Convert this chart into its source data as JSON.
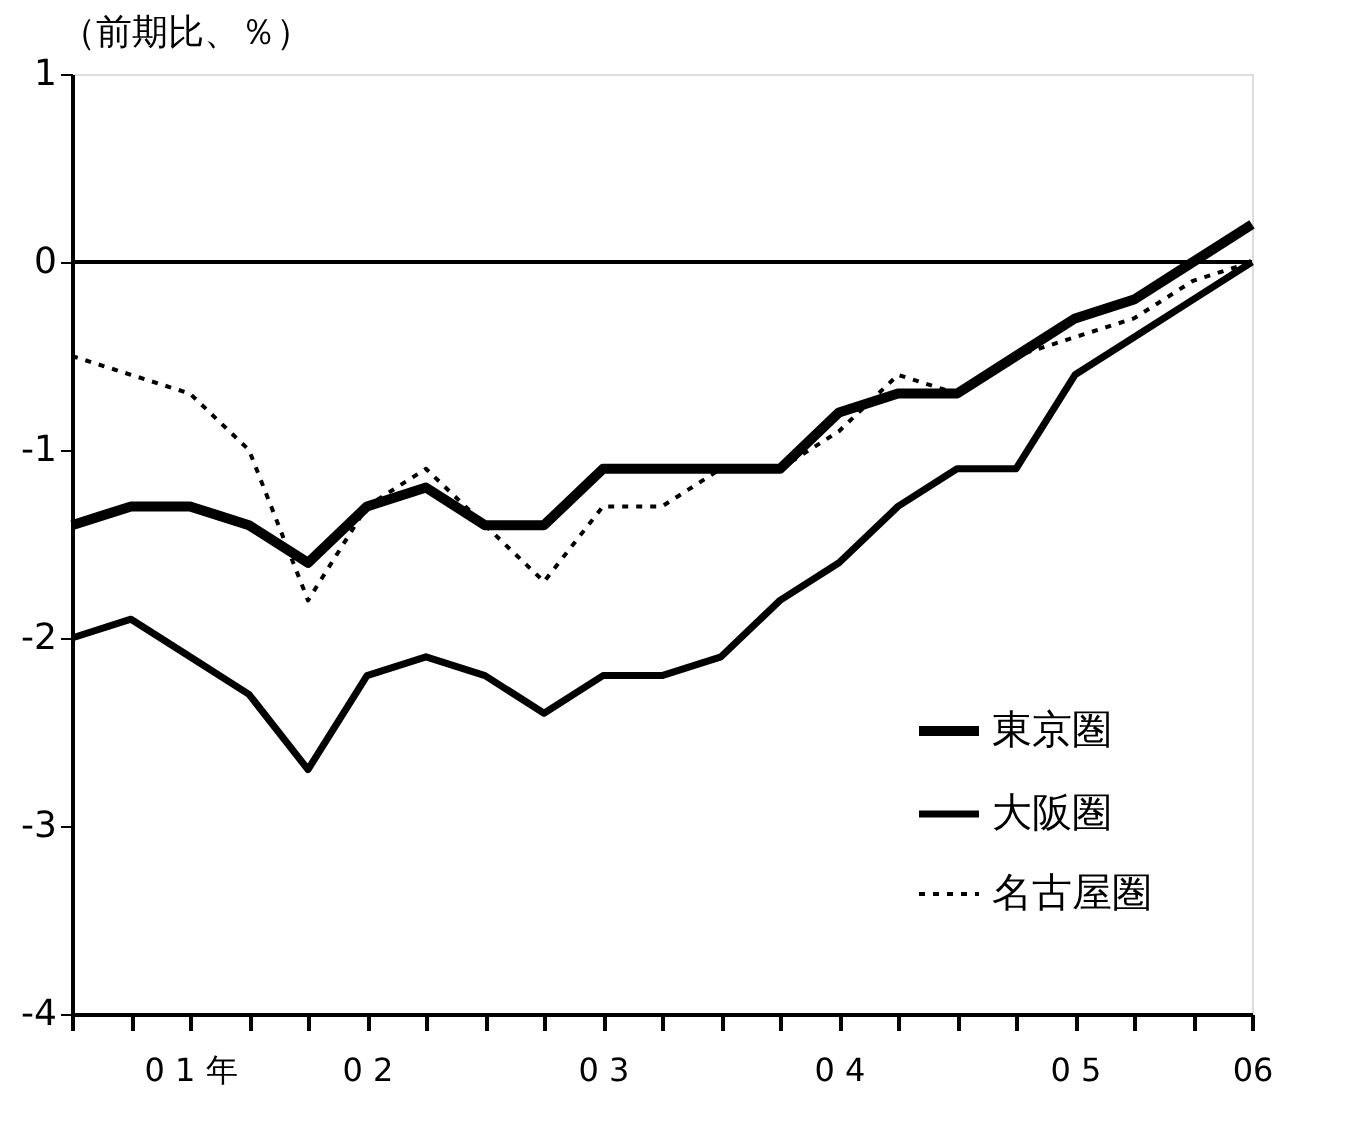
{
  "chart_data": {
    "type": "line",
    "ylabel": "（前期比、％）",
    "categories": [
      null,
      null,
      "0 1 年",
      null,
      null,
      "0 2",
      null,
      null,
      null,
      "0 3",
      null,
      null,
      null,
      "0 4",
      null,
      null,
      null,
      "0 5",
      null,
      null,
      "06"
    ],
    "ylim": [
      -4,
      1
    ],
    "yticks": [
      -4,
      -3,
      -2,
      -1,
      0,
      1
    ],
    "grid": false,
    "legend": "bottom right",
    "marker": "none",
    "ref_lines": [
      {
        "axis": "y",
        "value": 0,
        "color": "#000000"
      }
    ],
    "series": [
      {
        "name": "東京圏",
        "color": "#000000",
        "line_style": "solid",
        "values": [
          -1.4,
          -1.3,
          -1.3,
          -1.4,
          -1.6,
          -1.3,
          -1.2,
          -1.4,
          -1.4,
          -1.1,
          -1.1,
          -1.1,
          -1.1,
          -0.8,
          -0.7,
          -0.7,
          -0.5,
          -0.3,
          -0.2,
          0,
          0.2
        ]
      },
      {
        "name": "大阪圏",
        "color": "#000000",
        "line_style": "solid",
        "values": [
          -2.0,
          -1.9,
          -2.1,
          -2.3,
          -2.7,
          -2.2,
          -2.1,
          -2.2,
          -2.4,
          -2.2,
          -2.2,
          -2.1,
          -1.8,
          -1.6,
          -1.3,
          -1.1,
          -1.1,
          -0.6,
          -0.4,
          -0.2,
          0
        ]
      },
      {
        "name": "名古屋圏",
        "color": "#000000",
        "line_style": "dotted",
        "values": [
          -0.5,
          -0.6,
          -0.7,
          -1.0,
          -1.8,
          -1.3,
          -1.1,
          -1.4,
          -1.7,
          -1.3,
          -1.3,
          -1.1,
          -1.1,
          -0.9,
          -0.6,
          -0.7,
          -0.5,
          -0.4,
          -0.3,
          -0.1,
          0
        ]
      }
    ]
  }
}
